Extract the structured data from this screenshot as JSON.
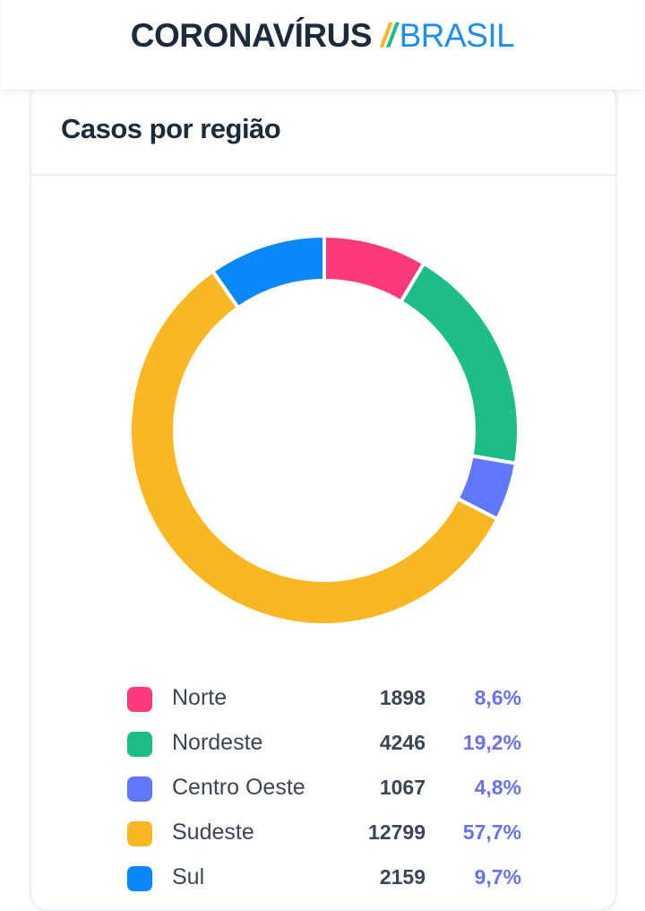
{
  "header": {
    "brand_main": "CORONAVÍRUS",
    "brand_slash_1": "/",
    "brand_slash_2": "/",
    "brand_sub": "BRASIL"
  },
  "card": {
    "title": "Casos por região"
  },
  "chart_data": {
    "type": "pie",
    "style": "donut",
    "categories": [
      "Norte",
      "Nordeste",
      "Centro Oeste",
      "Sudeste",
      "Sul"
    ],
    "values": [
      1898,
      4246,
      1067,
      12799,
      2159
    ],
    "percent_labels": [
      "8,6%",
      "19,2%",
      "4,8%",
      "57,7%",
      "9,7%"
    ],
    "value_labels": [
      "1898",
      "4246",
      "1067",
      "12799",
      "2159"
    ],
    "colors": [
      "#fd3b7c",
      "#1dbd86",
      "#5f78fc",
      "#f9b823",
      "#0a88fa"
    ],
    "legend_position": "bottom"
  },
  "colors": {
    "brand_dark": "#1b2b3c",
    "brand_blue": "#1a8ff0",
    "brand_yellow": "#f9b823",
    "brand_green": "#1dbd86",
    "percent": "#6a72e8"
  }
}
